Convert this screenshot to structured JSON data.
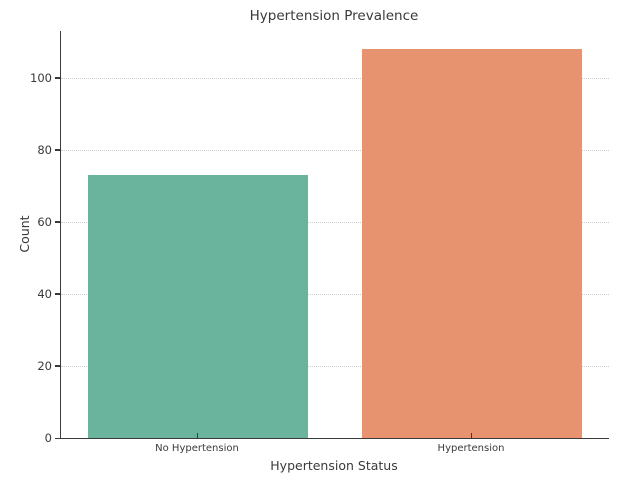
{
  "chart_data": {
    "type": "bar",
    "title": "Hypertension Prevalence",
    "xlabel": "Hypertension Status",
    "ylabel": "Count",
    "categories": [
      "No Hypertension",
      "Hypertension"
    ],
    "values": [
      73,
      108
    ],
    "bar_colors": [
      "#6ab49e",
      "#e8936f"
    ],
    "yticks": [
      0,
      20,
      40,
      60,
      80,
      100
    ],
    "ylim": [
      0,
      113
    ],
    "xlim_units": [
      -0.5,
      1.5
    ],
    "bar_width_fraction": 0.8,
    "grid": "horizontal dotted, behind bars",
    "grid_color": "#cccccc",
    "spine_color": "#3b3b3b",
    "text_color": "#3a3a3a",
    "background_color": "#ffffff",
    "legend": "none"
  }
}
